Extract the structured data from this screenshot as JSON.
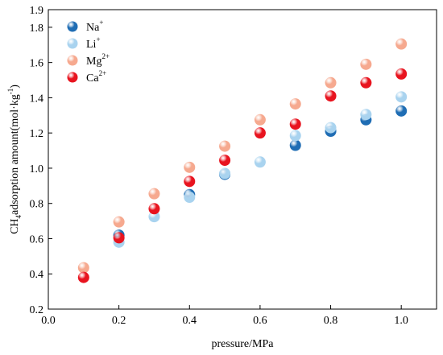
{
  "chart_data": {
    "type": "scatter",
    "xlabel": "pressure/MPa",
    "ylabel": {
      "pre": "CH",
      "sub": "4",
      "mid": "adsorption amount(mol·kg",
      "sup": "-1",
      "post": ")"
    },
    "xlim": [
      0.0,
      1.1
    ],
    "ylim": [
      0.2,
      1.9
    ],
    "xticks": [
      0.0,
      0.2,
      0.4,
      0.6,
      0.8,
      1.0
    ],
    "yticks": [
      0.2,
      0.4,
      0.6,
      0.8,
      1.0,
      1.2,
      1.4,
      1.6,
      1.8,
      1.9
    ],
    "grid": false,
    "legend_position": "top-left",
    "series": [
      {
        "name": "Na",
        "charge": "+",
        "color": "#1f6db4",
        "x": [
          0.2,
          0.4,
          0.5,
          0.7,
          0.8,
          0.9,
          1.0
        ],
        "y": [
          0.62,
          0.85,
          0.965,
          1.13,
          1.21,
          1.275,
          1.325
        ]
      },
      {
        "name": "Li",
        "charge": "+",
        "color": "#a9d3ef",
        "x": [
          0.2,
          0.3,
          0.4,
          0.5,
          0.6,
          0.7,
          0.8,
          0.9,
          1.0
        ],
        "y": [
          0.58,
          0.725,
          0.835,
          0.97,
          1.035,
          1.185,
          1.23,
          1.305,
          1.405
        ]
      },
      {
        "name": "Mg",
        "charge": "2+",
        "color": "#f6a98f",
        "x": [
          0.1,
          0.2,
          0.3,
          0.4,
          0.5,
          0.6,
          0.7,
          0.8,
          0.9,
          1.0
        ],
        "y": [
          0.435,
          0.695,
          0.855,
          1.005,
          1.125,
          1.275,
          1.365,
          1.485,
          1.59,
          1.705
        ]
      },
      {
        "name": "Ca",
        "charge": "2+",
        "color": "#e8141f",
        "x": [
          0.1,
          0.2,
          0.3,
          0.4,
          0.5,
          0.6,
          0.7,
          0.8,
          0.9,
          1.0
        ],
        "y": [
          0.38,
          0.605,
          0.77,
          0.925,
          1.045,
          1.2,
          1.25,
          1.41,
          1.485,
          1.535
        ]
      }
    ]
  }
}
